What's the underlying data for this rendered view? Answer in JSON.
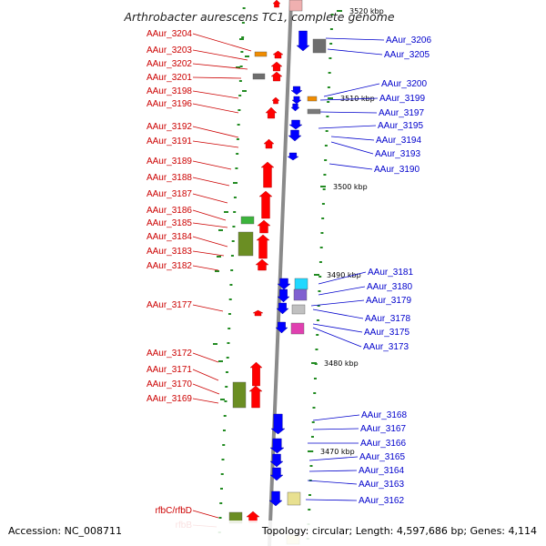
{
  "title": "Arthrobacter aurescens TC1, complete genome",
  "footer": {
    "accession": "Accession: NC_008711",
    "summary": "Topology: circular; Length: 4,597,686 bp; Genes: 4,114"
  },
  "colors": {
    "forward": "#ff0000",
    "reverse": "#0000ff",
    "forward_text": "#cc0000",
    "reverse_text": "#0000cc",
    "backbone": "#8a8a8a",
    "tick": "#228b22"
  },
  "scale_labels": [
    {
      "text": "3520 kbp",
      "kbp": 3520
    },
    {
      "text": "3510 kbp",
      "kbp": 3510
    },
    {
      "text": "3500 kbp",
      "kbp": 3500
    },
    {
      "text": "3490 kbp",
      "kbp": 3490
    },
    {
      "text": "3480 kbp",
      "kbp": 3480
    },
    {
      "text": "3470 kbp",
      "kbp": 3470
    }
  ],
  "forward_genes": [
    {
      "label": "AAur_3204"
    },
    {
      "label": "AAur_3203"
    },
    {
      "label": "AAur_3202"
    },
    {
      "label": "AAur_3201"
    },
    {
      "label": "AAur_3198"
    },
    {
      "label": "AAur_3196"
    },
    {
      "label": "AAur_3192"
    },
    {
      "label": "AAur_3191"
    },
    {
      "label": "AAur_3189"
    },
    {
      "label": "AAur_3188"
    },
    {
      "label": "AAur_3187"
    },
    {
      "label": "AAur_3186"
    },
    {
      "label": "AAur_3185"
    },
    {
      "label": "AAur_3184"
    },
    {
      "label": "AAur_3183"
    },
    {
      "label": "AAur_3182"
    },
    {
      "label": "AAur_3177"
    },
    {
      "label": "AAur_3172"
    },
    {
      "label": "AAur_3171"
    },
    {
      "label": "AAur_3170"
    },
    {
      "label": "AAur_3169"
    },
    {
      "label": "rfbC/rfbD"
    },
    {
      "label": "rfbB"
    }
  ],
  "reverse_genes": [
    {
      "label": "AAur_3206"
    },
    {
      "label": "AAur_3205"
    },
    {
      "label": "AAur_3200"
    },
    {
      "label": "AAur_3199"
    },
    {
      "label": "AAur_3197"
    },
    {
      "label": "AAur_3195"
    },
    {
      "label": "AAur_3194"
    },
    {
      "label": "AAur_3193"
    },
    {
      "label": "AAur_3190"
    },
    {
      "label": "AAur_3181"
    },
    {
      "label": "AAur_3180"
    },
    {
      "label": "AAur_3179"
    },
    {
      "label": "AAur_3178"
    },
    {
      "label": "AAur_3175"
    },
    {
      "label": "AAur_3173"
    },
    {
      "label": "AAur_3168"
    },
    {
      "label": "AAur_3167"
    },
    {
      "label": "AAur_3166"
    },
    {
      "label": "AAur_3165"
    },
    {
      "label": "AAur_3164"
    },
    {
      "label": "AAur_3163"
    },
    {
      "label": "AAur_3162"
    }
  ]
}
